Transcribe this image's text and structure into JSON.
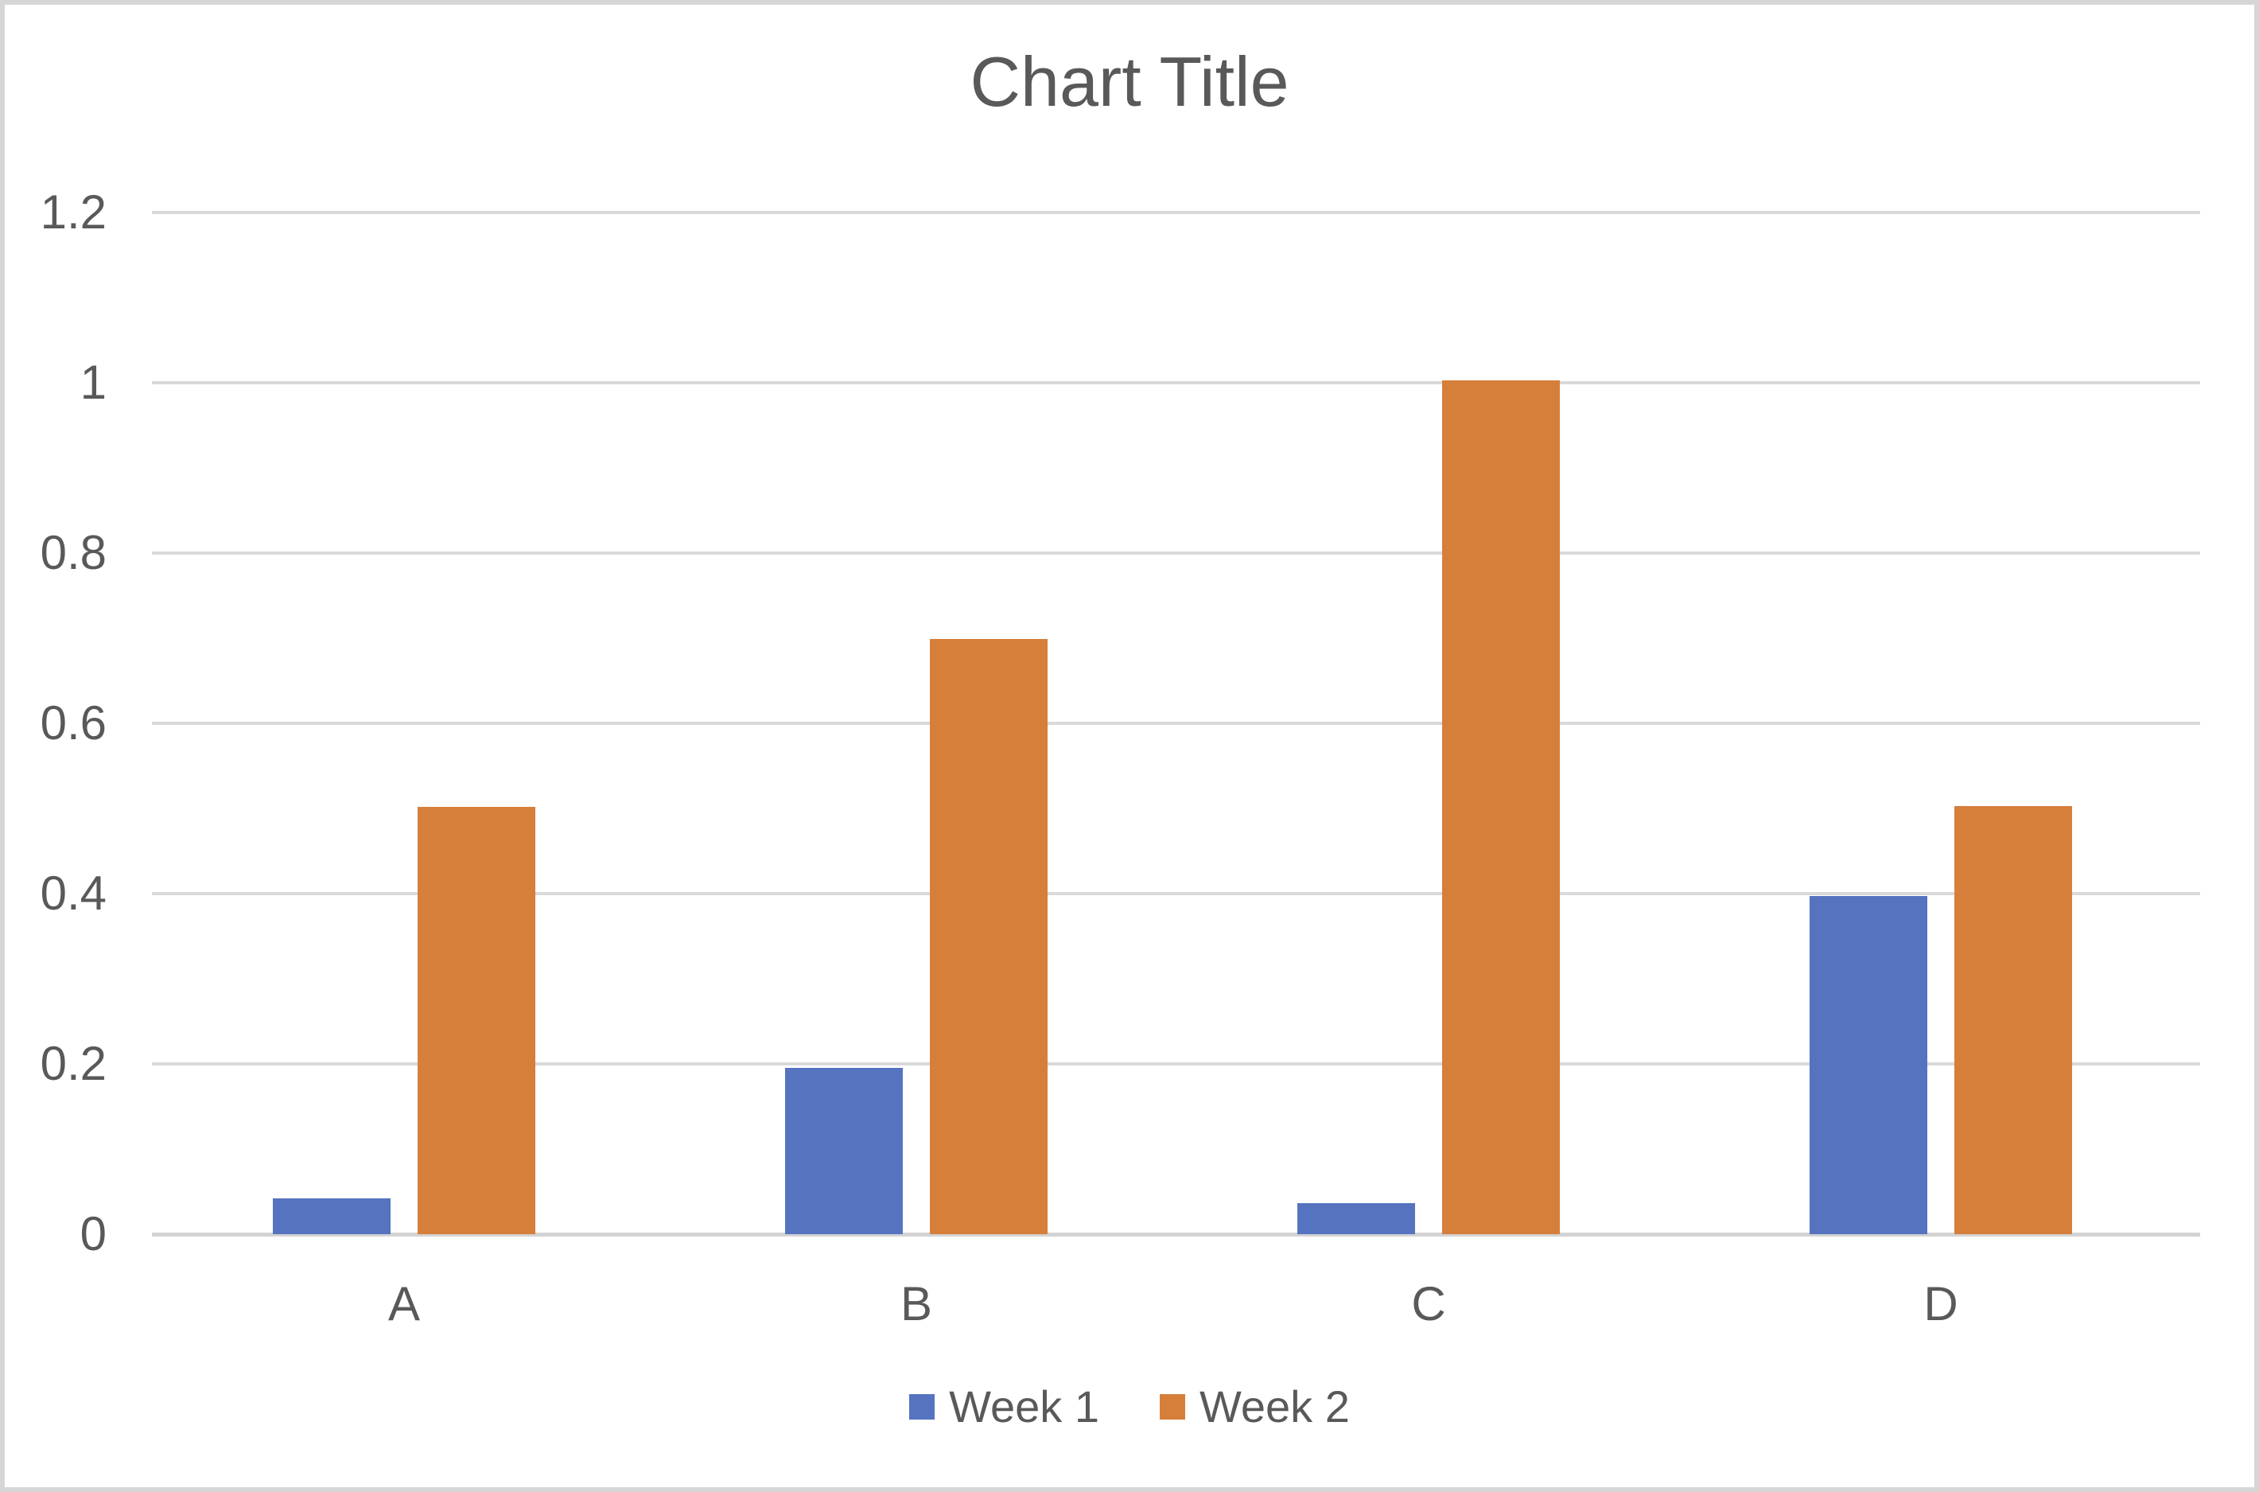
{
  "chart_data": {
    "type": "bar",
    "title": "Chart Title",
    "categories": [
      "A",
      "B",
      "C",
      "D"
    ],
    "series": [
      {
        "name": "Week 1",
        "color": "#5573BF",
        "values": [
          0.042,
          0.195,
          0.036,
          0.397
        ]
      },
      {
        "name": "Week 2",
        "color": "#D67F3B",
        "values": [
          0.502,
          0.699,
          1.003,
          0.503
        ]
      }
    ],
    "y_axis": {
      "min": 0,
      "max": 1.2,
      "tick_step": 0.2,
      "tick_labels": [
        "0",
        "0.2",
        "0.4",
        "0.6",
        "0.8",
        "1",
        "1.2"
      ]
    },
    "x_axis_label": "",
    "y_axis_label": "",
    "legend_position": "bottom",
    "grid": true,
    "colors": {
      "gridline": "#d9d9d9",
      "axis_text": "#595959",
      "title_text": "#595959",
      "canvas_border": "#d6d6d6",
      "background": "#ffffff"
    }
  }
}
